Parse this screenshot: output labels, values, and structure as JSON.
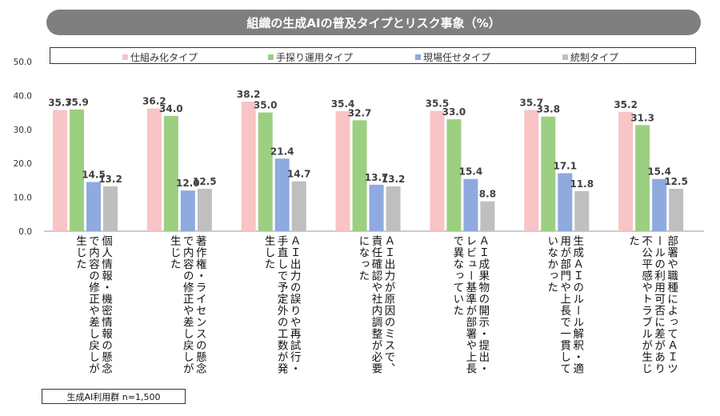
{
  "chart_data": {
    "type": "bar",
    "title": "組織の生成AIの普及タイプとリスク事象（%）",
    "ylim": [
      0,
      50
    ],
    "yticks": [
      "0.0",
      "10.0",
      "20.0",
      "30.0",
      "40.0",
      "50.0"
    ],
    "grid": false,
    "legend_position": "top",
    "categories": [
      "個人情報・機密情報の懸念で内容の修正や差し戻しが生じた",
      "著作権・ライセンスの懸念で内容の修正や差し戻しが生じた",
      "ＡＩ出力の誤りや再試行・手直しで予定外の工数が発生した",
      "ＡＩ出力が原因のミスで、責任確認や社内調整が必要になった",
      "ＡＩ成果物の開示・提出・レビュー基準が部署や上長で異なっていた",
      "生成ＡＩのルール解釈・適用が部門や上長で一貫していなかった",
      "部署や職種によってＡＩツールの利用可否に差があり不公平感やトラブルが生じた"
    ],
    "series": [
      {
        "name": "仕組み化タイプ",
        "color": "#f8c4c6",
        "values": [
          35.7,
          36.2,
          38.2,
          35.4,
          35.5,
          35.7,
          35.2
        ]
      },
      {
        "name": "手探り運用タイプ",
        "color": "#9ccf82",
        "values": [
          35.9,
          34.0,
          35.0,
          32.7,
          33.0,
          33.8,
          31.3
        ]
      },
      {
        "name": "現場任せタイプ",
        "color": "#8eaadf",
        "values": [
          14.5,
          12.0,
          21.4,
          13.7,
          15.4,
          17.1,
          15.4
        ]
      },
      {
        "name": "統制タイプ",
        "color": "#bfbfbf",
        "values": [
          13.2,
          12.5,
          14.7,
          13.2,
          8.8,
          11.8,
          12.5
        ]
      }
    ]
  },
  "note": "生成AI利用群 n=1,500"
}
